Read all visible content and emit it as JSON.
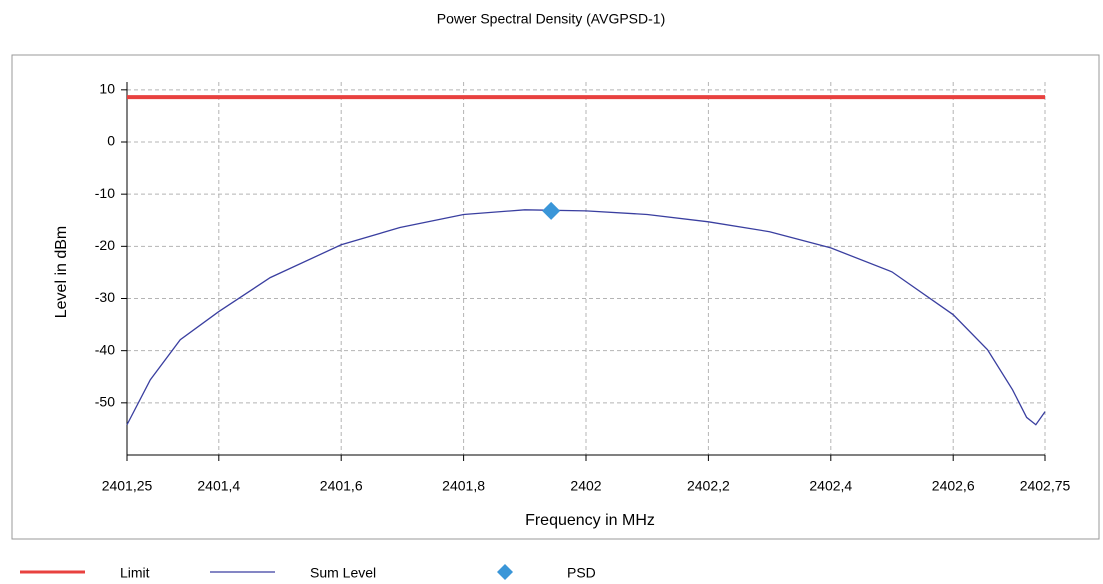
{
  "chart_data": {
    "type": "line",
    "title": "Power Spectral Density (AVGPSD-1)",
    "xlabel": "Frequency in MHz",
    "ylabel": "Level in dBm",
    "xlim": [
      2401.25,
      2402.75
    ],
    "ylim": [
      -60,
      11.5
    ],
    "xticks": [
      {
        "value": 2401.25,
        "label": "2401,25"
      },
      {
        "value": 2401.4,
        "label": "2401,4"
      },
      {
        "value": 2401.6,
        "label": "2401,6"
      },
      {
        "value": 2401.8,
        "label": "2401,8"
      },
      2402,
      {
        "value": 2402.2,
        "label": "2402,2"
      },
      {
        "value": 2402.4,
        "label": "2402,4"
      },
      {
        "value": 2402.6,
        "label": "2402,6"
      },
      {
        "value": 2402.75,
        "label": "2402,75"
      }
    ],
    "yticks": [
      -50,
      -40,
      -30,
      -20,
      -10,
      0,
      10
    ],
    "grid": true,
    "legend": "bottom",
    "series": [
      {
        "name": "Limit",
        "color": "#e8413f",
        "style": "line",
        "x": [
          2401.25,
          2402.75
        ],
        "values": [
          8.6,
          8.6
        ]
      },
      {
        "name": "Sum Level",
        "color": "#3a3fa0",
        "style": "line",
        "x": [
          2401.25,
          2401.288,
          2401.337,
          2401.4,
          2401.484,
          2401.6,
          2401.696,
          2401.8,
          2401.9,
          2402,
          2402.1,
          2402.2,
          2402.3,
          2402.4,
          2402.5,
          2402.6,
          2402.656,
          2402.697,
          2402.72,
          2402.735,
          2402.75
        ],
        "values": [
          -54.2,
          -45.6,
          -37.9,
          -32.5,
          -26,
          -19.7,
          -16.4,
          -13.9,
          -13,
          -13.2,
          -13.9,
          -15.3,
          -17.2,
          -20.3,
          -24.9,
          -33.1,
          -39.8,
          -47.5,
          -52.8,
          -54.2,
          -51.7
        ]
      },
      {
        "name": "PSD",
        "color": "#3a96d8",
        "style": "marker",
        "x": [
          2401.943
        ],
        "values": [
          -13.2
        ]
      }
    ]
  }
}
